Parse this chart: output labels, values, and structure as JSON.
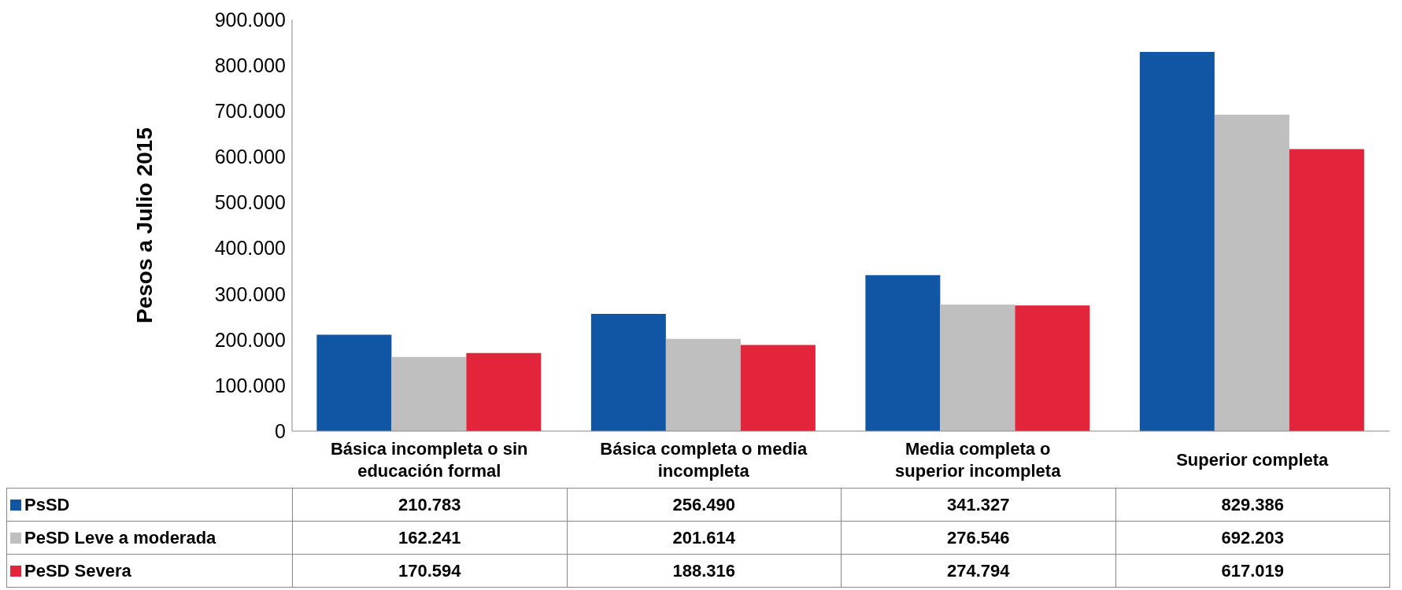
{
  "chart_data": {
    "type": "bar",
    "ylabel": "Pesos a Julio 2015",
    "categories": [
      "Básica incompleta o sin educación formal",
      "Básica completa o media incompleta",
      "Media completa o superior incompleta",
      "Superior completa"
    ],
    "series": [
      {
        "name": "PsSD",
        "color": "#1155a5",
        "values": [
          210783,
          256490,
          341327,
          829386
        ],
        "value_labels": [
          "210.783",
          "256.490",
          "341.327",
          "829.386"
        ]
      },
      {
        "name": "PeSD Leve a moderada",
        "color": "#bfbfbf",
        "values": [
          162241,
          201614,
          276546,
          692203
        ],
        "value_labels": [
          "162.241",
          "201.614",
          "276.546",
          "692.203"
        ]
      },
      {
        "name": "PeSD Severa",
        "color": "#e2253a",
        "values": [
          170594,
          188316,
          274794,
          617019
        ],
        "value_labels": [
          "170.594",
          "188.316",
          "274.794",
          "617.019"
        ]
      }
    ],
    "ylim": [
      0,
      900000
    ],
    "yticks": [
      0,
      {
        "value": 100000,
        "label": "100.000"
      },
      {
        "value": 200000,
        "label": "200.000"
      },
      {
        "value": 300000,
        "label": "300.000"
      },
      {
        "value": 400000,
        "label": "400.000"
      },
      {
        "value": 500000,
        "label": "500.000"
      },
      {
        "value": 600000,
        "label": "600.000"
      },
      {
        "value": 700000,
        "label": "700.000"
      },
      {
        "value": 800000,
        "label": "800.000"
      },
      {
        "value": 900000,
        "label": "900.000"
      }
    ],
    "grid": false,
    "legend": "bottom left"
  }
}
